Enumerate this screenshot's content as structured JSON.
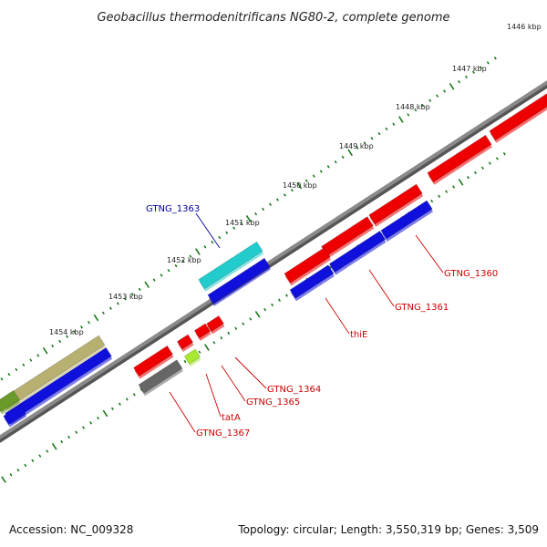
{
  "title": "Geobacillus thermodenitrificans NG80-2, complete genome",
  "footer": {
    "accession": "Accession: NC_009328",
    "summary": "Topology: circular; Length: 3,550,319 bp; Genes: 3,509"
  },
  "scale_labels": [
    "1446 kbp",
    "1447 kbp",
    "1448 kbp",
    "1449 kbp",
    "1450 kbp",
    "1451 kbp",
    "1452 kbp",
    "1453 kbp",
    "1454 kbp"
  ],
  "gene_labels": {
    "gtng_1363": "GTNG_1363",
    "gtng_1360": "GTNG_1360",
    "gtng_1361": "GTNG_1361",
    "thie": "thiE",
    "gtng_1364": "GTNG_1364",
    "gtng_1365": "GTNG_1365",
    "tata": "tatA",
    "gtng_1367": "GTNG_1367"
  },
  "colors": {
    "backbone": "#8a8a8a",
    "tick": "#1a7a1a",
    "forward_gene": "#ee0000",
    "cds_track": "#1010dd",
    "cyan_gene": "#22cccc",
    "gray_gene": "#666666",
    "lime_gene": "#a8e830",
    "olive_gene": "#b8b070",
    "green_gene": "#6a9a2a",
    "label_red": "#cc0000",
    "label_blue": "#000099"
  }
}
